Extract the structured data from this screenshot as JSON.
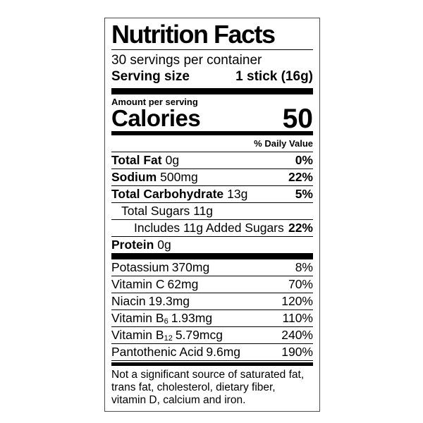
{
  "label": {
    "title": "Nutrition Facts",
    "servings_per_container": "30 servings per container",
    "serving_size_label": "Serving size",
    "serving_size_value": "1 stick (16g)",
    "amount_per_serving": "Amount per serving",
    "calories_label": "Calories",
    "calories_value": "50",
    "daily_value_header": "% Daily Value",
    "main_rows": [
      {
        "b": "Total Fat",
        "r": "0g",
        "dv": "0%"
      },
      {
        "b": "Sodium",
        "r": "500mg",
        "dv": "22%"
      },
      {
        "b": "Total Carbohydrate",
        "r": "13g",
        "dv": "5%"
      },
      {
        "b": "",
        "r": "Total Sugars 11g",
        "dv": ""
      },
      {
        "b": "",
        "r": "Includes 11g Added Sugars",
        "dv": "22%"
      },
      {
        "b": "Protein",
        "r": "0g",
        "dv": ""
      }
    ],
    "micro_rows": [
      {
        "name": "Potassium",
        "sub": "",
        "amount": "370mg",
        "dv": "8%"
      },
      {
        "name": "Vitamin C",
        "sub": "",
        "amount": "62mg",
        "dv": "70%"
      },
      {
        "name": "Niacin",
        "sub": "",
        "amount": "19.3mg",
        "dv": "120%"
      },
      {
        "name": "Vitamin B",
        "sub": "6",
        "amount": "1.93mg",
        "dv": "110%"
      },
      {
        "name": "Vitamin B",
        "sub": "12",
        "amount": "5.79mcg",
        "dv": "240%"
      },
      {
        "name": "Pantothenic Acid",
        "sub": "",
        "amount": "9.6mg",
        "dv": "190%"
      }
    ],
    "footnote": "Not a significant source of saturated fat, trans fat, cholesterol, dietary fiber, vitamin D, calcium and iron."
  }
}
